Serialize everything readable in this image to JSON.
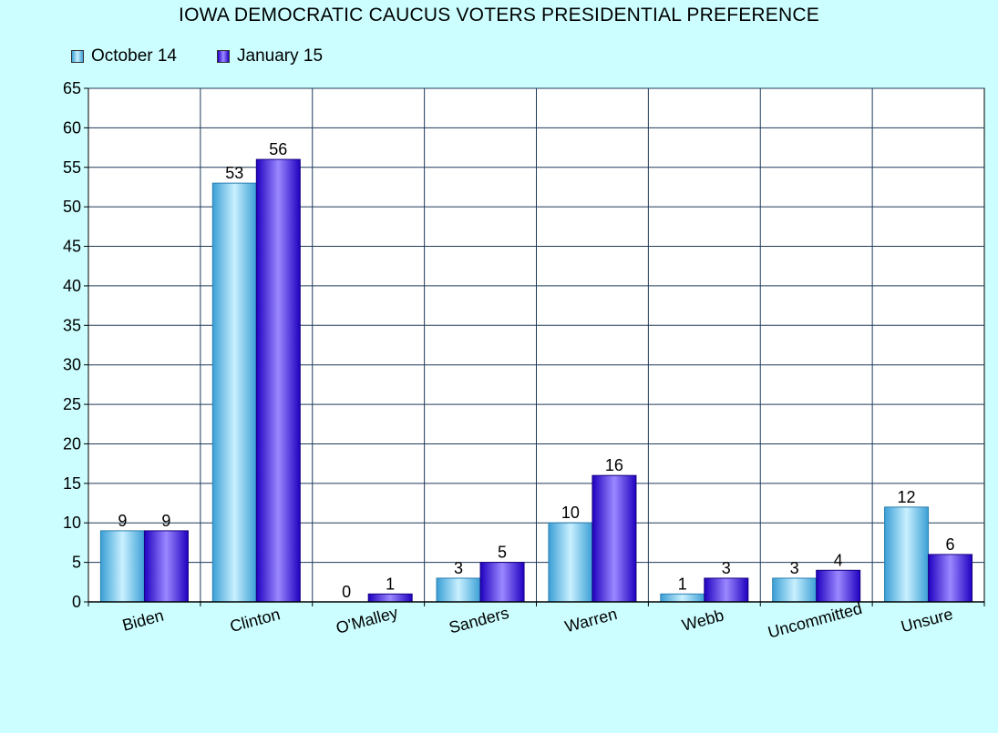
{
  "chart_data": {
    "type": "bar",
    "title": "IOWA DEMOCRATIC CAUCUS VOTERS PRESIDENTIAL PREFERENCE",
    "categories": [
      "Biden",
      "Clinton",
      "O'Malley",
      "Sanders",
      "Warren",
      "Webb",
      "Uncommitted",
      "Unsure"
    ],
    "series": [
      {
        "name": "October 14",
        "values": [
          9,
          53,
          0,
          3,
          10,
          1,
          3,
          12
        ]
      },
      {
        "name": "January 15",
        "values": [
          9,
          56,
          1,
          5,
          16,
          3,
          4,
          6
        ]
      }
    ],
    "ylim": [
      0,
      65
    ],
    "yticks": [
      "0",
      "5",
      "10",
      "15",
      "20",
      "25",
      "30",
      "35",
      "40",
      "45",
      "50",
      "55",
      "60",
      "65"
    ],
    "xlabel": "",
    "ylabel": "",
    "grid": true,
    "legend_position": "top-left",
    "colors": {
      "background": "#ccfeff",
      "plot_background": "#ffffff",
      "gridline": "#1f3a5a",
      "series_0": "#5cc2ee",
      "series_1": "#2a0fd8"
    }
  }
}
